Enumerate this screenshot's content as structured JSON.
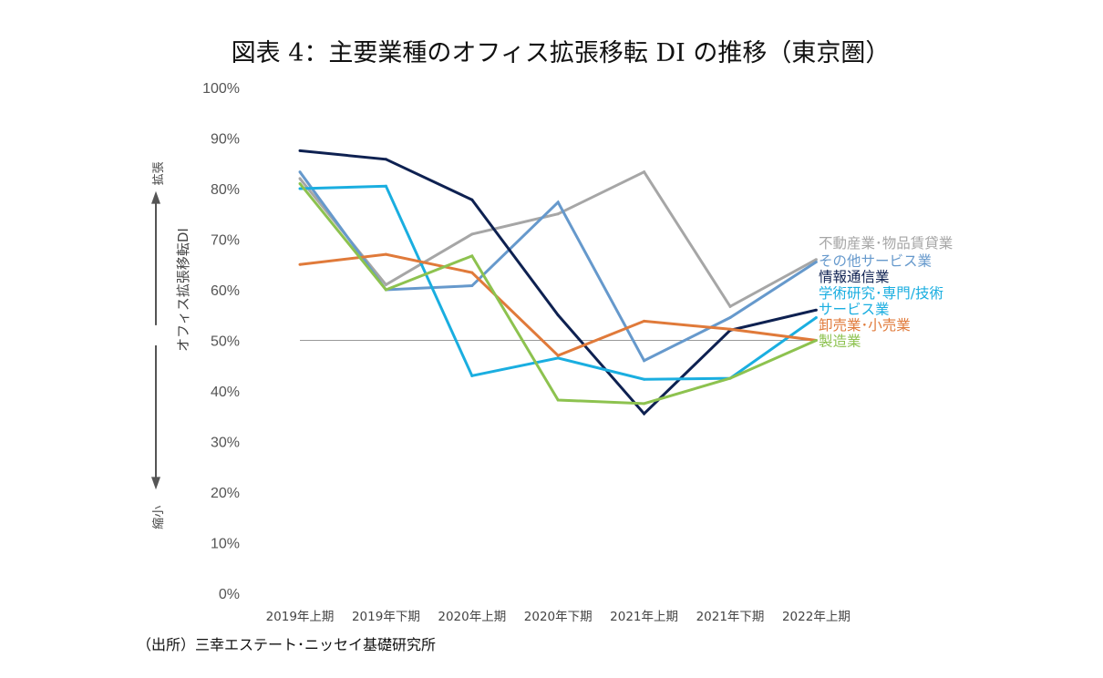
{
  "chart_data": {
    "type": "line",
    "title": "図表 4：主要業種のオフィス拡張移転 DI の推移（東京圏）",
    "ylabel": "オフィス拡張移転DI",
    "y_annotations": {
      "top": "拡張",
      "bottom": "縮小"
    },
    "ylim": [
      0,
      100
    ],
    "yticks": [
      "0%",
      "10%",
      "20%",
      "30%",
      "40%",
      "50%",
      "60%",
      "70%",
      "80%",
      "90%",
      "100%"
    ],
    "reference_line": 50,
    "grid": false,
    "legend": "right (inline labels)",
    "categories": [
      "2019年上期",
      "2019年下期",
      "2020年上期",
      "2020年下期",
      "2021年上期",
      "2021年下期",
      "2022年上期"
    ],
    "series": [
      {
        "name": "不動産業･物品賃貸業",
        "color": "#a6a6a6",
        "values": [
          82,
          61,
          71,
          75,
          83.3,
          56.7,
          66
        ]
      },
      {
        "name": "その他サービス業",
        "color": "#6699cc",
        "values": [
          83.3,
          60,
          60.8,
          77.3,
          46,
          54.5,
          65.5
        ]
      },
      {
        "name": "情報通信業",
        "color": "#0e2151",
        "values": [
          87.5,
          85.8,
          77.8,
          55,
          35.5,
          52,
          56
        ]
      },
      {
        "name": "学術研究･専門/技術サービス業",
        "label_lines": [
          "学術研究･専門/技術",
          "サービス業"
        ],
        "color": "#1aaee0",
        "values": [
          80,
          80.5,
          43,
          46.5,
          42.3,
          42.5,
          54.5
        ]
      },
      {
        "name": "卸売業･小売業",
        "color": "#e07a3a",
        "values": [
          65,
          67,
          63.4,
          47,
          53.8,
          52.2,
          50
        ]
      },
      {
        "name": "製造業",
        "color": "#8dc24f",
        "values": [
          81,
          60,
          66.7,
          38.2,
          37.5,
          42.5,
          50
        ]
      }
    ]
  },
  "source": "（出所）三幸エステート･ニッセイ基礎研究所"
}
